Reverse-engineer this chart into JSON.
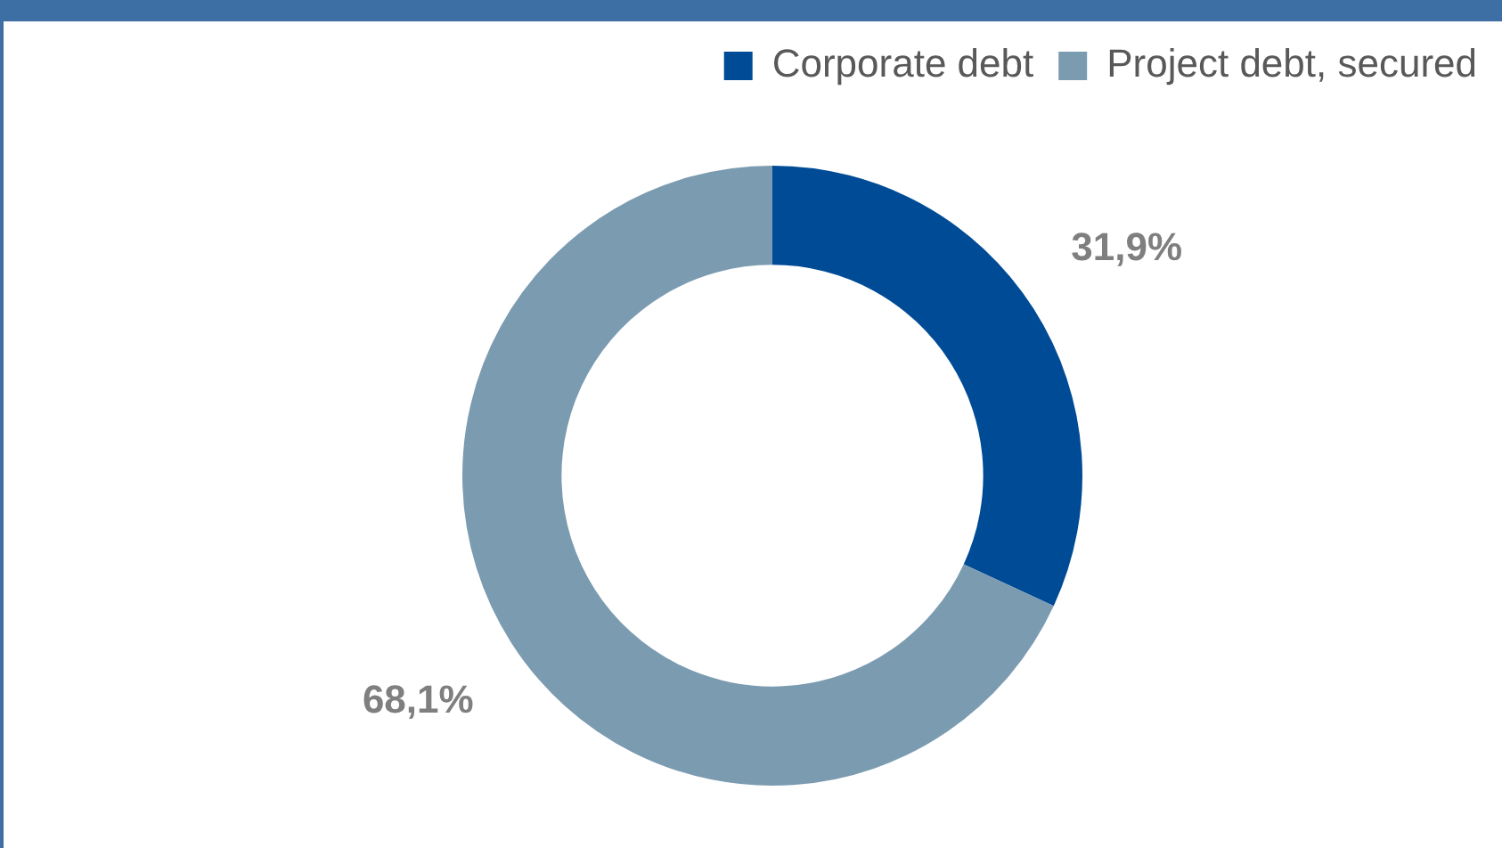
{
  "chart_data": {
    "type": "donut",
    "categories": [
      "Corporate debt",
      "Project debt, secured"
    ],
    "values": [
      31.9,
      68.1
    ],
    "colors": [
      "#004b96",
      "#7b9bb1"
    ],
    "value_labels": [
      "31,9%",
      "68,1%"
    ],
    "legend": "top right"
  }
}
